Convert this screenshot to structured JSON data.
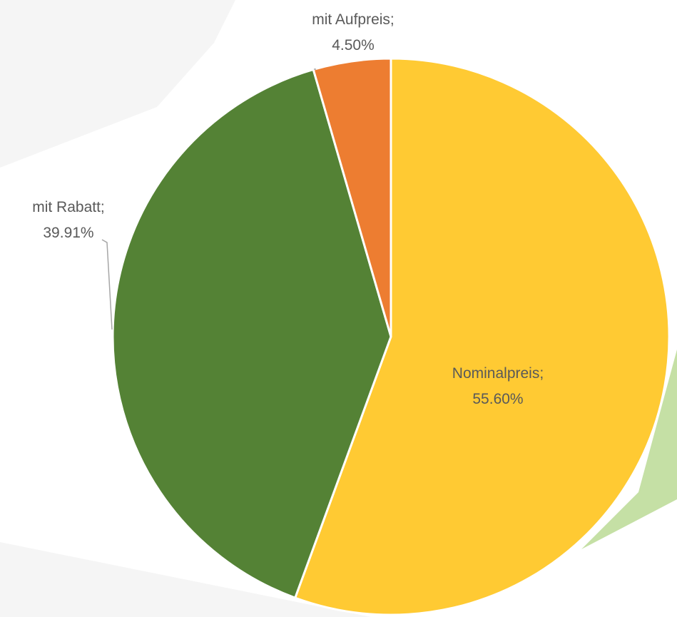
{
  "chart_data": {
    "type": "pie",
    "title": "",
    "start_angle_deg": 0,
    "direction": "clockwise",
    "slices": [
      {
        "label": "Nominalpreis",
        "value": 55.6,
        "display": "55.60%",
        "color": "#FFCA33"
      },
      {
        "label": "mit Rabatt",
        "value": 39.91,
        "display": "39.91%",
        "color": "#548235"
      },
      {
        "label": "mit Aufpreis",
        "value": 4.5,
        "display": "4.50%",
        "color": "#ED7D31"
      }
    ],
    "label_format": "{label}; {display}",
    "legend": "none",
    "slice_border_color": "#FFFFFF"
  },
  "background": {
    "page_color": "#FFFFFF",
    "shade_color": "#F5F5F5",
    "accent_color": "#C5E0A5"
  }
}
